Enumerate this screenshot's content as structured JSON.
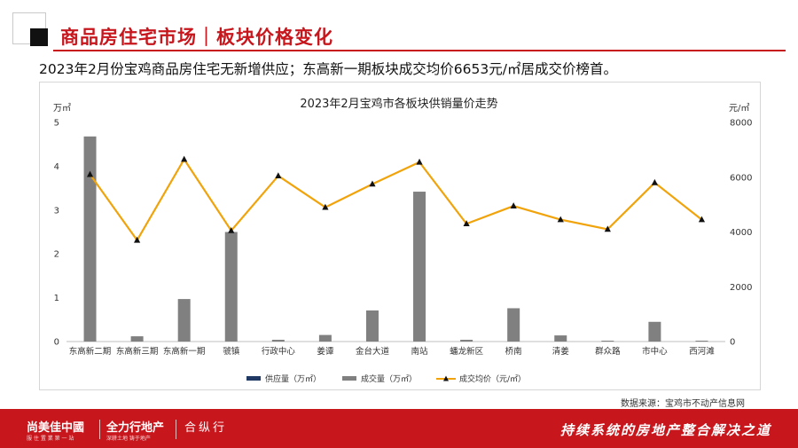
{
  "header": {
    "title": "商品房住宅市场｜板块价格变化"
  },
  "subtitle": "2023年2月份宝鸡商品房住宅无新增供应；东高新一期板块成交均价6653元/㎡居成交价榜首。",
  "chart_data": {
    "type": "bar",
    "title": "2023年2月宝鸡市各板块供销量价走势",
    "categories": [
      "东高新二期",
      "东高新三期",
      "东高新一期",
      "虢镇",
      "行政中心",
      "姜谭",
      "金台大道",
      "南站",
      "蟠龙新区",
      "桥南",
      "清姜",
      "群众路",
      "市中心",
      "西河滩"
    ],
    "y_left": {
      "unit": "万㎡",
      "range": [
        0,
        5
      ],
      "ticks": [
        "0",
        "1",
        "2",
        "3",
        "4",
        "5"
      ]
    },
    "y_right": {
      "unit": "元/㎡",
      "range": [
        0,
        8000
      ],
      "ticks": [
        "0",
        "2000",
        "4000",
        "6000",
        "8000"
      ]
    },
    "series": [
      {
        "name": "供应量（万㎡）",
        "type": "bar",
        "axis": "left",
        "color": "#1f3864",
        "values": [
          0,
          0,
          0,
          0,
          0,
          0,
          0,
          0,
          0,
          0,
          0,
          0,
          0,
          0
        ]
      },
      {
        "name": "成交量（万㎡）",
        "type": "bar",
        "axis": "left",
        "color": "#808080",
        "values": [
          4.68,
          0.12,
          0.97,
          2.5,
          0.04,
          0.15,
          0.71,
          3.42,
          0.04,
          0.76,
          0.14,
          0.02,
          0.45,
          0.02
        ]
      },
      {
        "name": "成交均价（元/㎡）",
        "type": "line",
        "axis": "right",
        "color": "#f0a30a",
        "values": [
          6100,
          3700,
          6653,
          4050,
          6050,
          4900,
          5750,
          6550,
          4300,
          4950,
          4450,
          4100,
          5800,
          4450
        ]
      }
    ],
    "legend_position": "bottom",
    "grid": false
  },
  "source": "数据来源：宝鸡市不动产信息网",
  "footer": {
    "logo1": "尚美佳中國",
    "logo1_sub": "服 住 置 業 第 一 站",
    "logo2": "全力行地产",
    "logo2_sub": "深耕土地  铸于地产",
    "logo3": "合纵行",
    "slogan": "持续系统的房地产整合解决之道"
  },
  "colors": {
    "brand": "#c8161d",
    "supply": "#1f3864",
    "deal": "#808080",
    "price": "#f0a30a"
  }
}
